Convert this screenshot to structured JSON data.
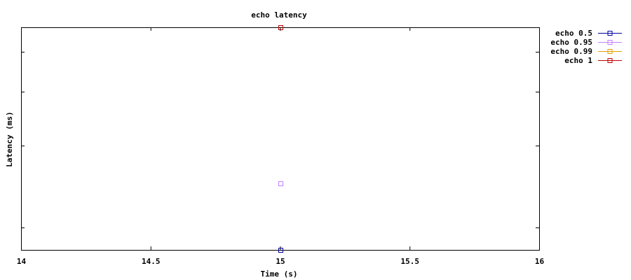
{
  "chart_data": {
    "type": "scatter",
    "title": "echo latency",
    "xlabel": "Time (s)",
    "ylabel": "Latency (ms)",
    "xlim": [
      14,
      16
    ],
    "ylim": [
      0,
      1
    ],
    "x_ticks": [
      "14",
      "14.5",
      "15",
      "15.5",
      "16"
    ],
    "y_ticks_labeled": false,
    "grid": false,
    "legend_position": "top-right, outside plot",
    "series": [
      {
        "name": "echo 0.5",
        "color": "#0000a0",
        "marker": "square-open",
        "points": [
          [
            15,
            0.0
          ]
        ]
      },
      {
        "name": "echo 0.95",
        "color": "#c080ff",
        "marker": "square-open",
        "points": [
          [
            15,
            0.3
          ]
        ]
      },
      {
        "name": "echo 0.99",
        "color": "#e0a000",
        "marker": "square-open",
        "points": [
          [
            15,
            1.0
          ]
        ]
      },
      {
        "name": "echo 1",
        "color": "#c00000",
        "marker": "square-open",
        "points": [
          [
            15,
            1.0
          ]
        ]
      }
    ]
  }
}
